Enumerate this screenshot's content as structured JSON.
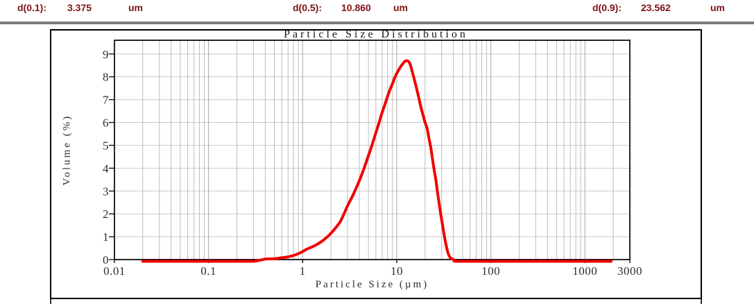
{
  "header": {
    "accent_color": "#7d1315",
    "items": [
      {
        "label": "d(0.1):",
        "value": "3.375",
        "unit": "um"
      },
      {
        "label": "d(0.5):",
        "value": "10.860",
        "unit": "um"
      },
      {
        "label": "d(0.9):",
        "value": "23.562",
        "unit": "um"
      }
    ]
  },
  "chart_data": {
    "type": "line",
    "title": "Particle Size Distribution",
    "xlabel": "Particle Size (µm)",
    "ylabel": "Volume (%)",
    "x_scale": "log",
    "xlim": [
      0.01,
      3000
    ],
    "ylim": [
      0,
      9.6
    ],
    "x_ticks": [
      0.01,
      0.1,
      1,
      10,
      100,
      1000,
      3000
    ],
    "x_tick_labels": [
      "0.01",
      "0.1",
      "1",
      "10",
      "100",
      "1000",
      "3000"
    ],
    "y_ticks": [
      0,
      1,
      2,
      3,
      4,
      5,
      6,
      7,
      8,
      9
    ],
    "grid": true,
    "legend": "none",
    "line_color": "#f20000",
    "grid_color_minor": "#bdbdbd",
    "grid_color_major": "#a6a6a6",
    "grid_color_horizontal": "#c9c9c9",
    "series": [
      {
        "name": "Volume (%)",
        "points": [
          [
            0.02,
            0
          ],
          [
            0.05,
            0
          ],
          [
            0.1,
            0
          ],
          [
            0.2,
            0
          ],
          [
            0.3,
            0
          ],
          [
            0.4,
            0.02
          ],
          [
            0.5,
            0.04
          ],
          [
            0.6,
            0.08
          ],
          [
            0.7,
            0.12
          ],
          [
            0.8,
            0.18
          ],
          [
            0.9,
            0.26
          ],
          [
            1.0,
            0.35
          ],
          [
            1.1,
            0.45
          ],
          [
            1.25,
            0.55
          ],
          [
            1.4,
            0.65
          ],
          [
            1.6,
            0.8
          ],
          [
            1.8,
            0.97
          ],
          [
            2.0,
            1.15
          ],
          [
            2.25,
            1.4
          ],
          [
            2.5,
            1.65
          ],
          [
            2.75,
            2.0
          ],
          [
            3.0,
            2.35
          ],
          [
            3.5,
            2.9
          ],
          [
            4.0,
            3.45
          ],
          [
            4.5,
            4.0
          ],
          [
            5.0,
            4.55
          ],
          [
            5.5,
            5.05
          ],
          [
            6.0,
            5.55
          ],
          [
            6.5,
            6.0
          ],
          [
            7.0,
            6.45
          ],
          [
            7.5,
            6.8
          ],
          [
            8.0,
            7.15
          ],
          [
            8.5,
            7.45
          ],
          [
            9.0,
            7.7
          ],
          [
            9.5,
            7.95
          ],
          [
            10.0,
            8.15
          ],
          [
            10.5,
            8.3
          ],
          [
            11.0,
            8.45
          ],
          [
            11.5,
            8.55
          ],
          [
            12.0,
            8.65
          ],
          [
            12.5,
            8.7
          ],
          [
            13.0,
            8.7
          ],
          [
            13.5,
            8.65
          ],
          [
            14.0,
            8.5
          ],
          [
            15.0,
            8.05
          ],
          [
            16.0,
            7.6
          ],
          [
            17.0,
            7.15
          ],
          [
            18.0,
            6.7
          ],
          [
            19.0,
            6.33
          ],
          [
            20.0,
            6.0
          ],
          [
            21.0,
            5.75
          ],
          [
            22.0,
            5.3
          ],
          [
            22.8,
            5.0
          ],
          [
            24.0,
            4.4
          ],
          [
            24.8,
            4.0
          ],
          [
            26.0,
            3.5
          ],
          [
            27.0,
            3.0
          ],
          [
            28.0,
            2.55
          ],
          [
            29.3,
            2.0
          ],
          [
            30.0,
            1.75
          ],
          [
            31.0,
            1.4
          ],
          [
            32.0,
            1.05
          ],
          [
            33.0,
            0.75
          ],
          [
            34.0,
            0.5
          ],
          [
            35.0,
            0.3
          ],
          [
            36.0,
            0.17
          ],
          [
            37.0,
            0.09
          ],
          [
            38.0,
            0.04
          ],
          [
            40.0,
            0.01
          ],
          [
            42.0,
            0
          ],
          [
            60,
            0
          ],
          [
            100,
            0
          ],
          [
            300,
            0
          ],
          [
            700,
            0
          ],
          [
            1200,
            0
          ],
          [
            1900,
            0
          ]
        ]
      }
    ]
  }
}
